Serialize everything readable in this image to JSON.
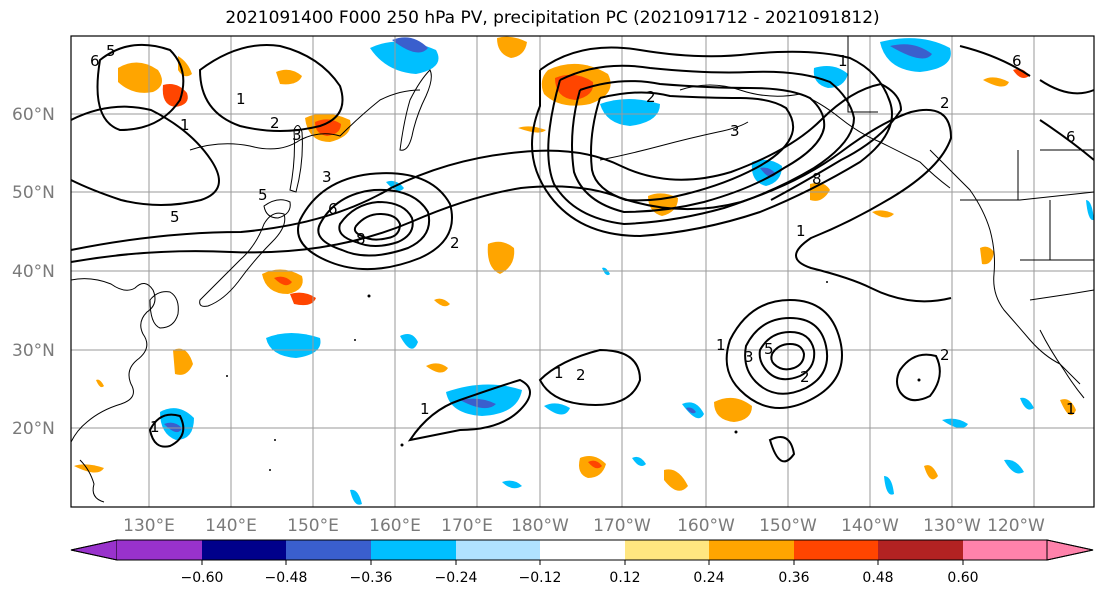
{
  "title": "2021091400 F000 250 hPa PV, precipitation PC (2021091712 - 2021091812)",
  "lat_labels": [
    "60°N",
    "50°N",
    "40°N",
    "30°N",
    "20°N"
  ],
  "lon_labels": [
    "130°E",
    "140°E",
    "150°E",
    "160°E",
    "170°E",
    "180°W",
    "170°W",
    "160°W",
    "150°W",
    "140°W",
    "130°W",
    "120°W"
  ],
  "colorbar": {
    "tick_labels": [
      "−0.60",
      "−0.48",
      "−0.36",
      "−0.24",
      "−0.12",
      "0.12",
      "0.24",
      "0.36",
      "0.48",
      "0.60"
    ],
    "colors": [
      "#9932cc",
      "#00008b",
      "#3a5fcd",
      "#00bfff",
      "#b0e2ff",
      "#ffffff",
      "#ffe680",
      "#ffa500",
      "#ff4500",
      "#b22222",
      "#ff82ab"
    ]
  },
  "contour_labels": [
    "6",
    "5",
    "1",
    "2",
    "3",
    "3",
    "5",
    "5",
    "6",
    "8",
    "2",
    "1",
    "2",
    "3",
    "8",
    "6",
    "2",
    "1",
    "1",
    "1",
    "2",
    "5",
    "3",
    "1",
    "2",
    "1",
    "1",
    "2",
    "1",
    "6"
  ],
  "colors": {
    "grid": "#9a9a9a",
    "contour": "#000000",
    "coast": "#000000"
  }
}
